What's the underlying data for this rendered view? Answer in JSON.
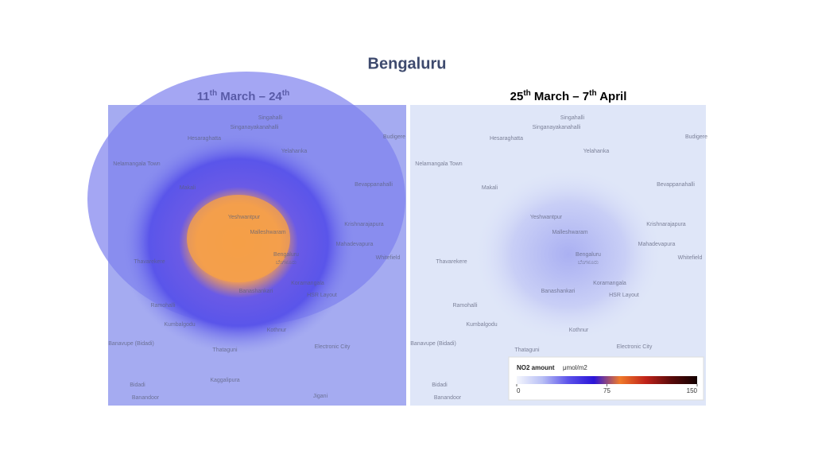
{
  "header": {
    "title": "Bengaluru"
  },
  "panels": [
    {
      "title_parts": [
        {
          "text": "11"
        },
        {
          "sup": "th"
        },
        {
          "text": " March – 24"
        },
        {
          "sup": "th"
        }
      ]
    },
    {
      "title_parts": [
        {
          "text": "25"
        },
        {
          "sup": "th"
        },
        {
          "text": " March – 7"
        },
        {
          "sup": "th"
        },
        {
          "text": " April"
        }
      ]
    }
  ],
  "places": [
    "Singahalli",
    "Singanayakanahalli",
    "Budigere",
    "Hesaraghatta",
    "Yelahanka",
    "Nelamangala Town",
    "Makali",
    "Bevappanahalli",
    "Yeshwantpur",
    "Malleshwaram",
    "Krishnarajapura",
    "Mahadevapura",
    "Bengaluru",
    "ಬೆಂಗಳೂರು",
    "Thavarekere",
    "Whitefield",
    "Koramangala",
    "Banashankari",
    "HSR Layout",
    "Ramohalli",
    "Kumbalgodu",
    "Kothnur",
    "Banavupe (Bidadi)",
    "Electronic City",
    "Thataguni",
    "Kaggalipura",
    "Bidadi",
    "Banandoor",
    "Jigani"
  ],
  "legend": {
    "title": "NO2 amount",
    "unit": "μmol/m2",
    "ticks": [
      0,
      75,
      150
    ],
    "colors": [
      "#f4f6fd",
      "#b8bff5",
      "#5b52ea",
      "#2a14d8",
      "#f07a2a",
      "#c0231a",
      "#5a0a0a",
      "#120000"
    ]
  }
}
